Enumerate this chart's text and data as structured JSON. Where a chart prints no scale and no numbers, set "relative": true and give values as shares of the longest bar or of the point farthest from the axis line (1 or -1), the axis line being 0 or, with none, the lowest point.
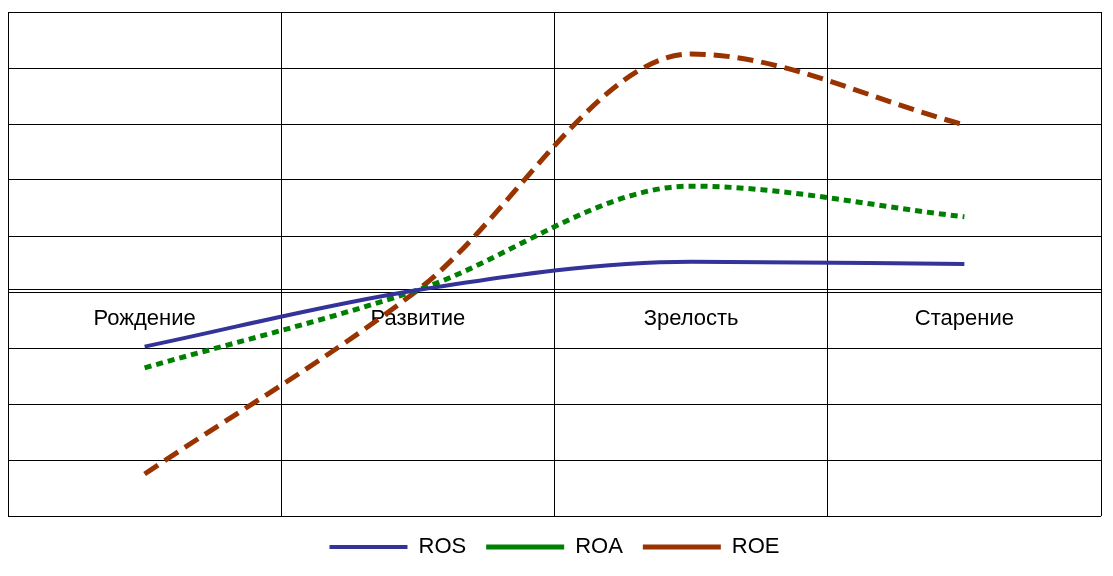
{
  "chart_data": {
    "type": "line",
    "relative": true,
    "categories": [
      "Рождение",
      "Развитие",
      "Зрелость",
      "Старение"
    ],
    "series": [
      {
        "name": "ROS",
        "color": "#333399",
        "line_style": "solid",
        "values": [
          -0.24,
          0,
          0.12,
          0.11
        ]
      },
      {
        "name": "ROA",
        "color": "#008000",
        "line_style": "dotted",
        "values": [
          -0.33,
          0,
          0.44,
          0.31
        ]
      },
      {
        "name": "ROE",
        "color": "#993300",
        "line_style": "dashed",
        "values": [
          -0.78,
          0,
          1,
          0.7
        ]
      }
    ],
    "grid": true,
    "legend": "bottom",
    "marker": "none"
  }
}
